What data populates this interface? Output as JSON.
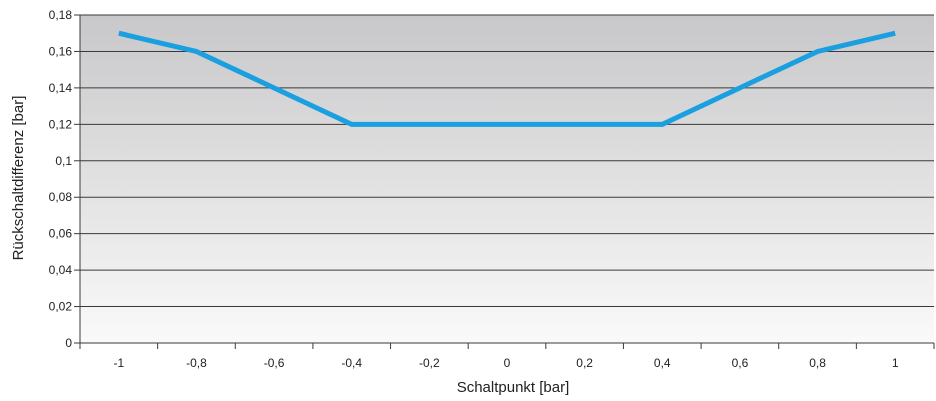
{
  "chart_data": {
    "type": "line",
    "title": "",
    "xlabel": "Schaltpunkt [bar]",
    "ylabel": "Rückschaltdifferenz [bar]",
    "x_ticks": [
      "-1",
      "-0,8",
      "-0,6",
      "-0,4",
      "-0,2",
      "0",
      "0,2",
      "0,4",
      "0,6",
      "0,8",
      "1"
    ],
    "y_ticks": [
      "0",
      "0,02",
      "0,04",
      "0,06",
      "0,08",
      "0,1",
      "0,12",
      "0,14",
      "0,16",
      "0,18"
    ],
    "xlim": [
      -1.1,
      1.1
    ],
    "ylim": [
      0,
      0.18
    ],
    "grid": true,
    "legend": "none",
    "series": [
      {
        "x": [
          -1.0,
          -0.8,
          -0.4,
          0.4,
          0.8,
          1.0
        ],
        "y": [
          0.17,
          0.16,
          0.12,
          0.12,
          0.16,
          0.17
        ],
        "color": "#1a9fe0"
      }
    ],
    "background_gradient": [
      "#c8c8ca",
      "#fafafa"
    ]
  }
}
